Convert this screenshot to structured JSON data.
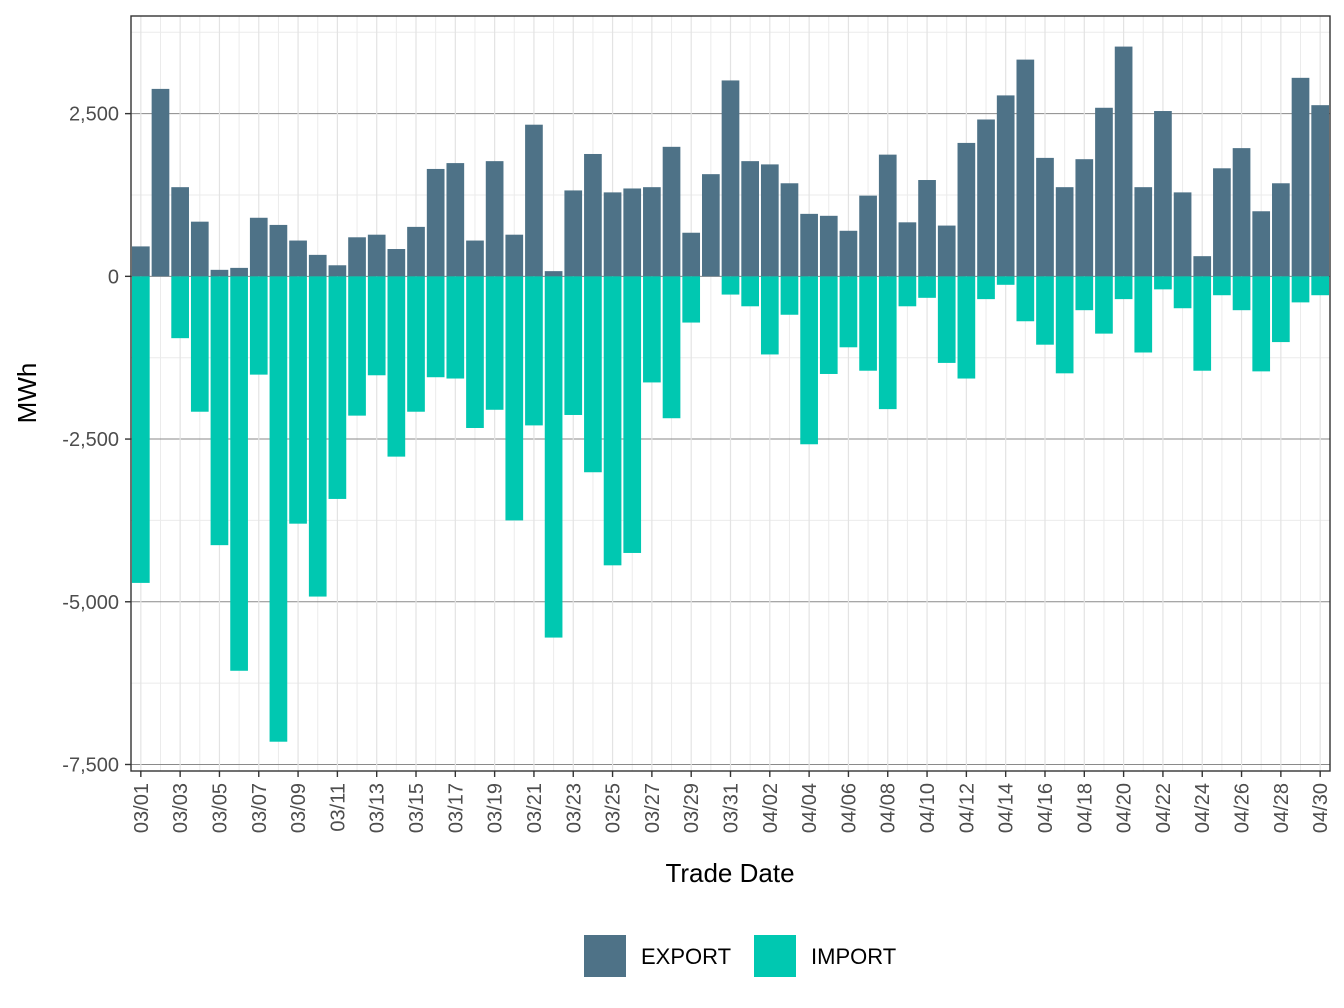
{
  "chart_data": {
    "type": "bar",
    "stacked": true,
    "title": "",
    "xlabel": "Trade Date",
    "ylabel": "MWh",
    "ylim": [
      -7600,
      4000
    ],
    "yticks": [
      2500,
      0,
      -2500,
      -5000,
      -7500
    ],
    "ytick_labels": [
      "2,500",
      "0",
      "-2,500",
      "-5,000",
      "-7,500"
    ],
    "grid": true,
    "legend_position": "bottom",
    "colors": {
      "EXPORT": "#4e7287",
      "IMPORT": "#00c8b1"
    },
    "categories": [
      "03/01",
      "03/02",
      "03/03",
      "03/04",
      "03/05",
      "03/06",
      "03/07",
      "03/08",
      "03/09",
      "03/10",
      "03/11",
      "03/12",
      "03/13",
      "03/14",
      "03/15",
      "03/16",
      "03/17",
      "03/18",
      "03/19",
      "03/20",
      "03/21",
      "03/22",
      "03/23",
      "03/24",
      "03/25",
      "03/26",
      "03/27",
      "03/28",
      "03/29",
      "03/30",
      "03/31",
      "04/01",
      "04/02",
      "04/03",
      "04/04",
      "04/05",
      "04/06",
      "04/07",
      "04/08",
      "04/09",
      "04/10",
      "04/11",
      "04/12",
      "04/13",
      "04/14",
      "04/15",
      "04/16",
      "04/17",
      "04/18",
      "04/19",
      "04/20",
      "04/21",
      "04/22",
      "04/23",
      "04/24",
      "04/25",
      "04/26",
      "04/27",
      "04/28",
      "04/29",
      "04/30"
    ],
    "tick_labels": [
      "03/01",
      "03/03",
      "03/05",
      "03/07",
      "03/09",
      "03/11",
      "03/13",
      "03/15",
      "03/17",
      "03/19",
      "03/21",
      "03/23",
      "03/25",
      "03/27",
      "03/29",
      "03/31",
      "04/02",
      "04/04",
      "04/06",
      "04/08",
      "04/10",
      "04/12",
      "04/14",
      "04/16",
      "04/18",
      "04/20",
      "04/22",
      "04/24",
      "04/26",
      "04/28",
      "04/30"
    ],
    "series": [
      {
        "name": "EXPORT",
        "values": [
          460,
          2880,
          1370,
          840,
          100,
          130,
          900,
          790,
          550,
          330,
          170,
          600,
          640,
          420,
          760,
          1650,
          1740,
          550,
          1770,
          640,
          2330,
          80,
          1320,
          1880,
          1290,
          1350,
          1370,
          1990,
          670,
          1570,
          3010,
          1770,
          1720,
          1430,
          960,
          930,
          700,
          1240,
          1870,
          830,
          1480,
          780,
          2050,
          2410,
          2780,
          3330,
          1820,
          1370,
          1800,
          2590,
          3530,
          1370,
          2540,
          1290,
          310,
          1660,
          1970,
          1000,
          1430,
          3050,
          2630
        ]
      },
      {
        "name": "IMPORT",
        "values": [
          -4710,
          0,
          -950,
          -2080,
          -4130,
          -6060,
          -1510,
          -7150,
          -3800,
          -4920,
          -3420,
          -2140,
          -1520,
          -2770,
          -2080,
          -1550,
          -1570,
          -2330,
          -2050,
          -3750,
          -2290,
          -5550,
          -2130,
          -3010,
          -4440,
          -4250,
          -1630,
          -2180,
          -710,
          0,
          -280,
          -460,
          -1200,
          -590,
          -2580,
          -1500,
          -1090,
          -1450,
          -2040,
          -460,
          -330,
          -1330,
          -1570,
          -350,
          -130,
          -690,
          -1050,
          -1490,
          -520,
          -880,
          -350,
          -1170,
          -200,
          -490,
          -1450,
          -290,
          -520,
          -1460,
          -1010,
          -400,
          -290
        ]
      }
    ]
  }
}
